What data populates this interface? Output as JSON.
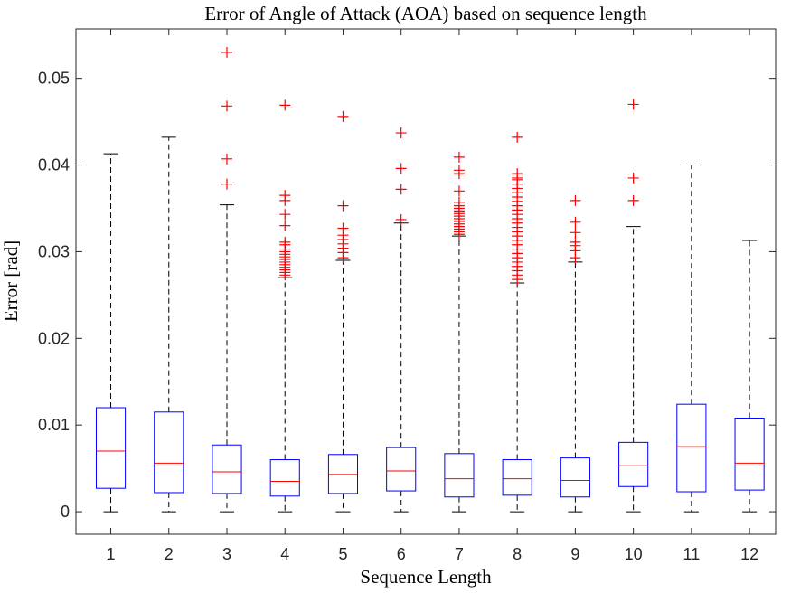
{
  "chart_data": {
    "type": "box",
    "title": "Error of Angle of Attack (AOA) based on sequence length",
    "x_label": "Sequence Length",
    "y_label": "Error [rad]",
    "x": [
      1,
      2,
      3,
      4,
      5,
      6,
      7,
      8,
      9,
      10,
      11,
      12
    ],
    "min": [
      0,
      0,
      0,
      0,
      0,
      0,
      0,
      0,
      0,
      0,
      0,
      0
    ],
    "q1": [
      0.0027,
      0.0022,
      0.0021,
      0.0018,
      0.0021,
      0.0024,
      0.0017,
      0.0019,
      0.0017,
      0.0029,
      0.0023,
      0.0025
    ],
    "median": [
      0.007,
      0.0056,
      0.0046,
      0.0035,
      0.0043,
      0.0047,
      0.0038,
      0.0038,
      0.0036,
      0.0053,
      0.0075,
      0.0056
    ],
    "q3": [
      0.012,
      0.0115,
      0.0077,
      0.006,
      0.0066,
      0.0074,
      0.0067,
      0.006,
      0.0062,
      0.008,
      0.0124,
      0.0108
    ],
    "max": [
      0.0413,
      0.0432,
      0.0354,
      0.027,
      0.029,
      0.0333,
      0.0318,
      0.0264,
      0.0288,
      0.0329,
      0.04,
      0.0313
    ],
    "outliers": [
      [],
      [],
      [
        0.053,
        0.0468,
        0.0407,
        0.0378
      ],
      [
        0.0469,
        0.0365,
        0.0359,
        0.0343,
        0.033,
        0.0311,
        0.0308,
        0.0303,
        0.03,
        0.0297,
        0.0294,
        0.0291,
        0.0288,
        0.0285,
        0.0282,
        0.0279,
        0.0276,
        0.0273
      ],
      [
        0.0456,
        0.0353,
        0.0327,
        0.0319,
        0.0314,
        0.0309,
        0.0304,
        0.0299,
        0.0293
      ],
      [
        0.0437,
        0.0396,
        0.0372,
        0.0337
      ],
      [
        0.0409,
        0.0394,
        0.039,
        0.037,
        0.0357,
        0.0353,
        0.035,
        0.0347,
        0.0344,
        0.0341,
        0.0338,
        0.0335,
        0.0332,
        0.0329,
        0.0326,
        0.0323,
        0.032
      ],
      [
        0.0432,
        0.039,
        0.0385,
        0.0383,
        0.0378,
        0.0373,
        0.0368,
        0.0363,
        0.0358,
        0.0353,
        0.0348,
        0.0343,
        0.0338,
        0.0333,
        0.0328,
        0.0323,
        0.0318,
        0.0313,
        0.0308,
        0.0303,
        0.0298,
        0.0293,
        0.0288,
        0.0283,
        0.0278,
        0.0273,
        0.0268
      ],
      [
        0.0359,
        0.0334,
        0.0322,
        0.0311,
        0.0307,
        0.0301,
        0.0293
      ],
      [
        0.047,
        0.0385,
        0.0359
      ],
      [],
      []
    ],
    "xlim": [
      0.4,
      12.45
    ],
    "ylim": [
      -0.0026,
      0.0557
    ],
    "xticks": [
      1,
      2,
      3,
      4,
      5,
      6,
      7,
      8,
      9,
      10,
      11,
      12
    ],
    "yticks": [
      0,
      0.01,
      0.02,
      0.03,
      0.04,
      0.05
    ],
    "box_color": "#0000ff",
    "median_color": "#ff0000",
    "whisker_color": "#000000",
    "outlier_color": "#ff0000"
  }
}
